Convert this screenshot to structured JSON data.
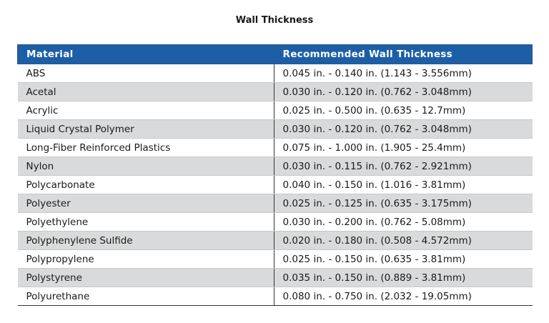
{
  "title": "Wall Thickness",
  "table": {
    "columns": [
      "Material",
      "Recommended Wall Thickness"
    ],
    "rows": [
      [
        "ABS",
        "0.045 in. - 0.140 in. (1.143 - 3.556mm)"
      ],
      [
        "Acetal",
        "0.030 in. - 0.120 in. (0.762 - 3.048mm)"
      ],
      [
        "Acrylic",
        "0.025 in. - 0.500 in. (0.635 - 12.7mm)"
      ],
      [
        "Liquid Crystal Polymer",
        "0.030 in. - 0.120 in. (0.762 - 3.048mm)"
      ],
      [
        "Long-Fiber Reinforced Plastics",
        "0.075 in. - 1.000 in. (1.905 - 25.4mm)"
      ],
      [
        "Nylon",
        "0.030 in. - 0.115 in. (0.762 - 2.921mm)"
      ],
      [
        "Polycarbonate",
        "0.040 in. - 0.150 in. (1.016 - 3.81mm)"
      ],
      [
        "Polyester",
        "0.025 in. - 0.125 in. (0.635 - 3.175mm)"
      ],
      [
        "Polyethylene",
        "0.030 in. - 0.200 in. (0.762 - 5.08mm)"
      ],
      [
        "Polyphenylene Sulfide",
        "0.020 in. - 0.180 in. (0.508 - 4.572mm)"
      ],
      [
        "Polypropylene",
        "0.025 in. - 0.150 in. (0.635 - 3.81mm)"
      ],
      [
        "Polystyrene",
        "0.035 in. - 0.150 in. (0.889 - 3.81mm)"
      ],
      [
        "Polyurethane",
        "0.080 in. - 0.750 in. (2.032 - 19.05mm)"
      ]
    ]
  }
}
